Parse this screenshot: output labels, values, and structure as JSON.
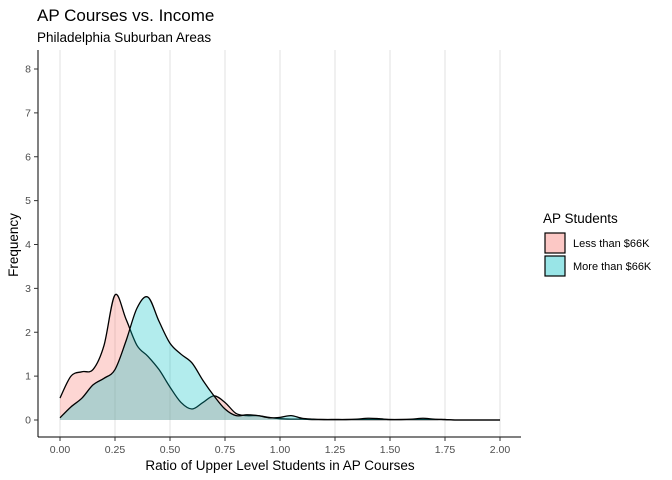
{
  "chart_data": {
    "type": "area",
    "title": "AP Courses vs. Income",
    "subtitle": "Philadelphia Suburban Areas",
    "xlabel": "Ratio of Upper Level Students in AP Courses",
    "ylabel": "Frequency",
    "xlim": [
      0,
      2
    ],
    "ylim": [
      0,
      8
    ],
    "x_ticks": [
      0,
      0.25,
      0.5,
      0.75,
      1.0,
      1.25,
      1.5,
      1.75,
      2.0
    ],
    "x_tick_labels": [
      "0.00",
      "0.25",
      "0.50",
      "0.75",
      "1.00",
      "1.25",
      "1.50",
      "1.75",
      "2.00"
    ],
    "y_ticks": [
      0,
      1,
      2,
      3,
      4,
      5,
      6,
      7,
      8
    ],
    "y_tick_labels": [
      "0",
      "1",
      "2",
      "3",
      "4",
      "5",
      "6",
      "7",
      "8"
    ],
    "grid": "vertical major gridlines",
    "legend": {
      "title": "AP Students",
      "position": "right"
    },
    "x": [
      0,
      0.05,
      0.1,
      0.15,
      0.2,
      0.25,
      0.3,
      0.35,
      0.4,
      0.45,
      0.5,
      0.55,
      0.6,
      0.65,
      0.7,
      0.75,
      0.8,
      0.85,
      0.9,
      0.95,
      1.0,
      1.05,
      1.1,
      1.15,
      1.2,
      1.25,
      1.3,
      1.35,
      1.4,
      1.45,
      1.5,
      1.55,
      1.6,
      1.65,
      1.7,
      1.75,
      1.8,
      1.85,
      1.9,
      1.95,
      2.0
    ],
    "series": [
      {
        "name": "Less than $66K",
        "color": "#F8766D",
        "values": [
          0.5,
          1.0,
          1.1,
          1.15,
          1.7,
          2.85,
          2.3,
          1.7,
          1.45,
          1.15,
          0.75,
          0.4,
          0.25,
          0.4,
          0.55,
          0.4,
          0.15,
          0.1,
          0.1,
          0.06,
          0.03,
          0.02,
          0.02,
          0.01,
          0.01,
          0.01,
          0.01,
          0.01,
          0.01,
          0.01,
          0.01,
          0.01,
          0.01,
          0.01,
          0.01,
          0.01,
          0.0,
          0.0,
          0.0,
          0.0,
          0.0
        ]
      },
      {
        "name": "More than $66K",
        "color": "#00BFC4",
        "values": [
          0.05,
          0.3,
          0.5,
          0.8,
          0.95,
          1.15,
          1.8,
          2.55,
          2.8,
          2.25,
          1.75,
          1.5,
          1.3,
          0.9,
          0.55,
          0.25,
          0.1,
          0.12,
          0.1,
          0.05,
          0.06,
          0.1,
          0.04,
          0.02,
          0.01,
          0.01,
          0.01,
          0.02,
          0.04,
          0.03,
          0.01,
          0.01,
          0.02,
          0.04,
          0.02,
          0.01,
          0.0,
          0.0,
          0.0,
          0.0,
          0.0
        ]
      }
    ]
  }
}
